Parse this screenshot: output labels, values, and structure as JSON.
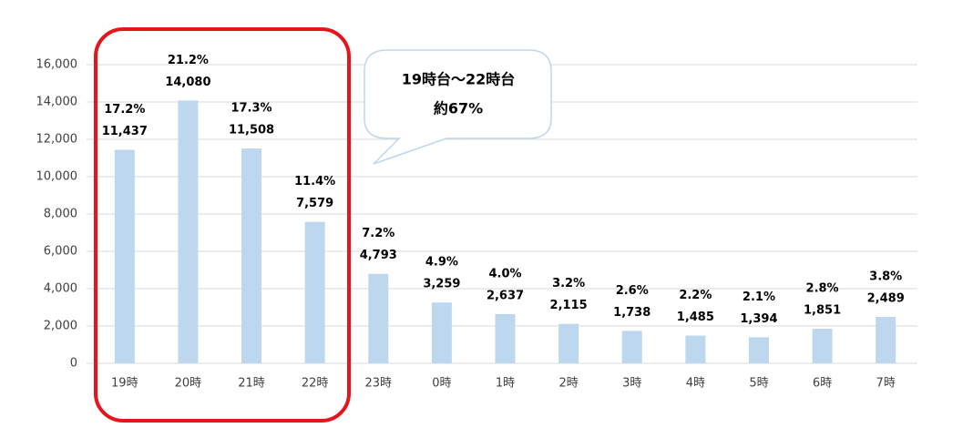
{
  "chart_data": {
    "type": "bar",
    "categories": [
      "19時",
      "20時",
      "21時",
      "22時",
      "23時",
      "0時",
      "1時",
      "2時",
      "3時",
      "4時",
      "5時",
      "6時",
      "7時"
    ],
    "values": [
      11437,
      14080,
      11508,
      7579,
      4793,
      3259,
      2637,
      2115,
      1738,
      1485,
      1394,
      1851,
      2489
    ],
    "value_labels": [
      "11,437",
      "14,080",
      "11,508",
      "7,579",
      "4,793",
      "3,259",
      "2,637",
      "2,115",
      "1,738",
      "1,485",
      "1,394",
      "1,851",
      "2,489"
    ],
    "shares": [
      17.2,
      21.2,
      17.3,
      11.4,
      7.2,
      4.9,
      4.0,
      3.2,
      2.6,
      2.2,
      2.1,
      2.8,
      3.8
    ],
    "share_labels": [
      "17.2%",
      "21.2%",
      "17.3%",
      "11.4%",
      "7.2%",
      "4.9%",
      "4.0%",
      "3.2%",
      "2.6%",
      "2.2%",
      "2.1%",
      "2.8%",
      "3.8%"
    ],
    "color": "#bdd7ee",
    "ylim": [
      0,
      16000
    ],
    "yticks": [
      0,
      {
        "value": 2000,
        "label": "2,000"
      },
      {
        "value": 4000,
        "label": "4,000"
      },
      {
        "value": 6000,
        "label": "6,000"
      },
      {
        "value": 8000,
        "label": "8,000"
      },
      {
        "value": 10000,
        "label": "10,000"
      },
      {
        "value": 12000,
        "label": "12,000"
      },
      {
        "value": 14000,
        "label": "14,000"
      },
      {
        "value": 16000,
        "label": "16,000"
      }
    ],
    "grid": true,
    "annotation": [
      "19時台～22時台",
      "約67%"
    ]
  }
}
